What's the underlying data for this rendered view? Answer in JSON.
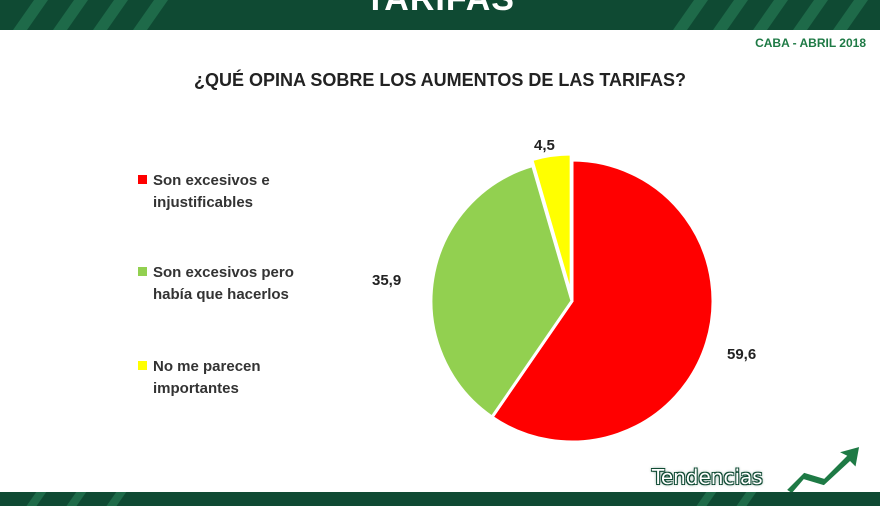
{
  "header": {
    "title": "TARIFAS"
  },
  "subtitle": "CABA - ABRIL 2018",
  "brand": {
    "name": "Tendencias",
    "arrow_icon": "trend-arrow-icon"
  },
  "colors": {
    "bar": "#0f4a33",
    "accent": "#1e6a49"
  },
  "chart_data": {
    "type": "pie",
    "title": "¿QUÉ OPINA SOBRE LOS AUMENTOS DE LAS TARIFAS?",
    "legend_position": "left",
    "slices": [
      {
        "label": "Son excesivos e injustificables",
        "value": 59.6,
        "value_label": "59,6",
        "color": "#ff0000"
      },
      {
        "label": "Son excesivos pero había que hacerlos",
        "value": 35.9,
        "value_label": "35,9",
        "color": "#92d050"
      },
      {
        "label": "No me parecen importantes",
        "value": 4.5,
        "value_label": "4,5",
        "color": "#ffff00"
      }
    ]
  }
}
